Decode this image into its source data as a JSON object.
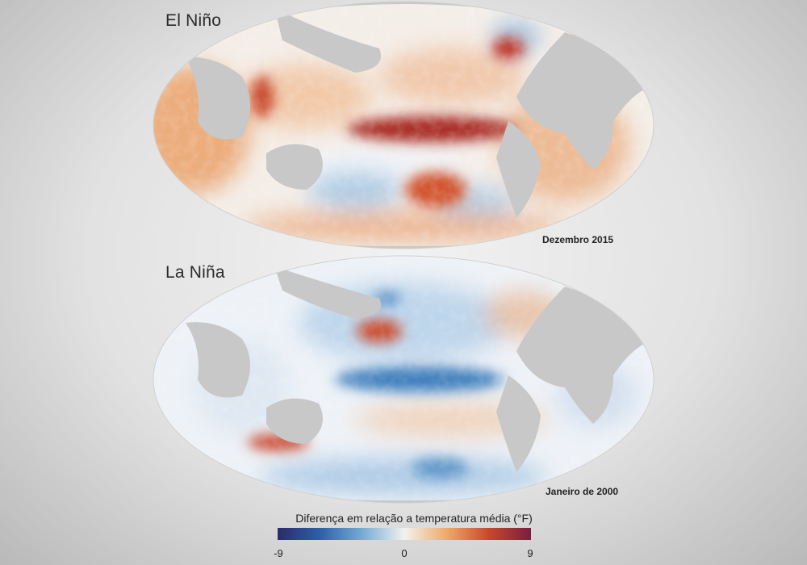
{
  "maps": [
    {
      "title": "El Niño",
      "date": "Dezembro 2015",
      "anomaly": "warm"
    },
    {
      "title": "La Niña",
      "date": "Janeiro de 2000",
      "anomaly": "cool"
    }
  ],
  "legend": {
    "title": "Diferença em relação a temperatura média (°F)",
    "ticks": [
      "-9",
      "0",
      "9"
    ],
    "colors": [
      "#2a2c6b",
      "#2e5fa8",
      "#74abd6",
      "#f2f2ee",
      "#efaa6a",
      "#c8482c",
      "#7a1e3e"
    ]
  }
}
